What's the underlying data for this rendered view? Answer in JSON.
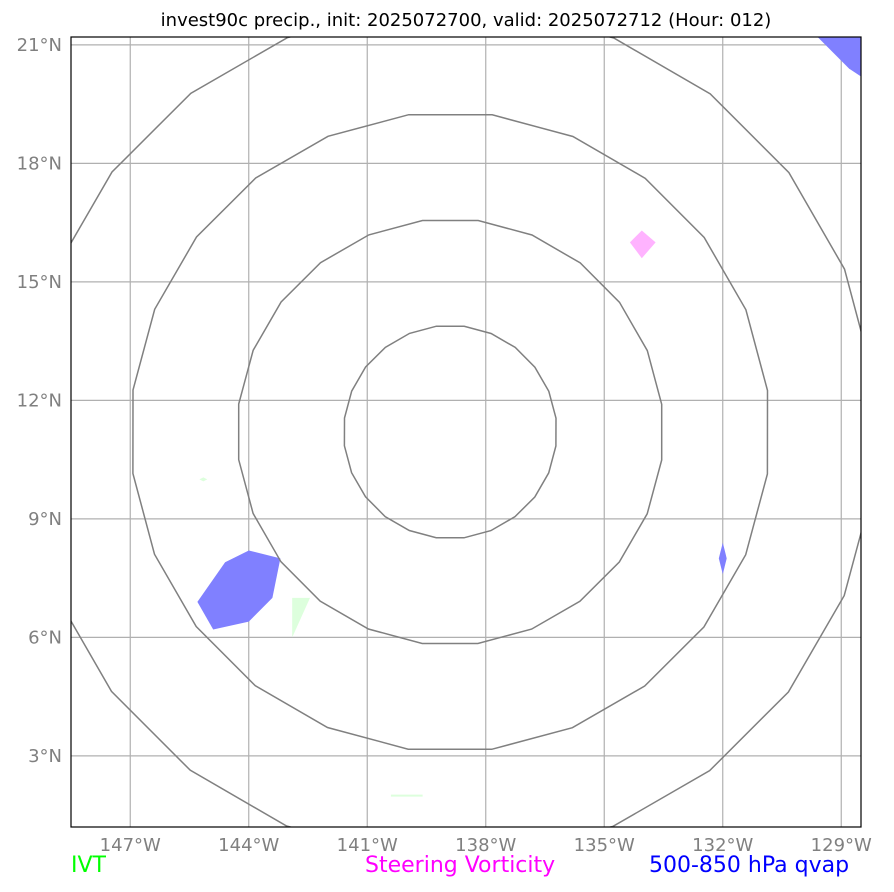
{
  "title": "invest90c precip., init: 2025072700, valid: 2025072712 (Hour: 012)",
  "map": {
    "projection": "plate-carree",
    "lon_range": [
      -148.5,
      -128.5
    ],
    "lat_range": [
      1.2,
      21.2
    ],
    "lon_ticks": [
      -147,
      -144,
      -141,
      -138,
      -135,
      -132,
      -129
    ],
    "lat_ticks": [
      3,
      6,
      9,
      12,
      15,
      18,
      21
    ],
    "lon_tick_labels": [
      "147°W",
      "144°W",
      "141°W",
      "138°W",
      "135°W",
      "132°W",
      "129°W"
    ],
    "lat_tick_labels": [
      "3°N",
      "6°N",
      "9°N",
      "12°N",
      "15°N",
      "18°N",
      "21°N"
    ],
    "gridlines": true,
    "range_rings": {
      "center": [
        -138.9,
        11.2
      ],
      "radius_deg": [
        2.7,
        5.4,
        8.1,
        10.8
      ]
    },
    "features": [
      {
        "name": "qvap-blob-west",
        "layer": "qvap",
        "color": "#8080ff",
        "polygon": [
          [
            -145.3,
            6.9
          ],
          [
            -144.6,
            7.9
          ],
          [
            -144.0,
            8.2
          ],
          [
            -143.2,
            8.0
          ],
          [
            -143.4,
            7.0
          ],
          [
            -144.0,
            6.4
          ],
          [
            -144.9,
            6.2
          ]
        ]
      },
      {
        "name": "qvap-blob-northeast",
        "layer": "qvap",
        "color": "#8080ff",
        "polygon": [
          [
            -129.6,
            21.2
          ],
          [
            -128.5,
            21.2
          ],
          [
            -128.5,
            20.2
          ],
          [
            -128.8,
            20.4
          ]
        ]
      },
      {
        "name": "qvap-sliver-east",
        "layer": "qvap",
        "color": "#8080ff",
        "polygon": [
          [
            -132.0,
            8.4
          ],
          [
            -131.9,
            8.0
          ],
          [
            -132.0,
            7.6
          ],
          [
            -132.1,
            8.0
          ]
        ]
      },
      {
        "name": "vorticity-diamond",
        "layer": "vorticity",
        "color": "#ffb3ff",
        "polygon": [
          [
            -134.05,
            16.3
          ],
          [
            -133.7,
            16.0
          ],
          [
            -134.05,
            15.6
          ],
          [
            -134.35,
            16.0
          ]
        ]
      },
      {
        "name": "ivt-sliver-center",
        "layer": "ivt",
        "color": "#ddffdd",
        "polygon": [
          [
            -142.9,
            7.0
          ],
          [
            -142.45,
            7.0
          ],
          [
            -142.9,
            6.0
          ]
        ]
      },
      {
        "name": "ivt-dot-west",
        "layer": "ivt",
        "color": "#ddffdd",
        "polygon": [
          [
            -145.15,
            10.05
          ],
          [
            -145.05,
            10.0
          ],
          [
            -145.15,
            9.95
          ],
          [
            -145.25,
            10.0
          ]
        ]
      },
      {
        "name": "ivt-dash-south",
        "layer": "ivt",
        "color": "#ddffdd",
        "polygon": [
          [
            -140.4,
            2.02
          ],
          [
            -139.6,
            2.02
          ],
          [
            -139.6,
            1.97
          ],
          [
            -140.4,
            1.97
          ]
        ]
      }
    ]
  },
  "legend": [
    {
      "label": "IVT",
      "color": "#00ff00"
    },
    {
      "label": "Steering Vorticity",
      "color": "#ff00ff"
    },
    {
      "label": "500-850 hPa qvap",
      "color": "#0000ff"
    }
  ]
}
